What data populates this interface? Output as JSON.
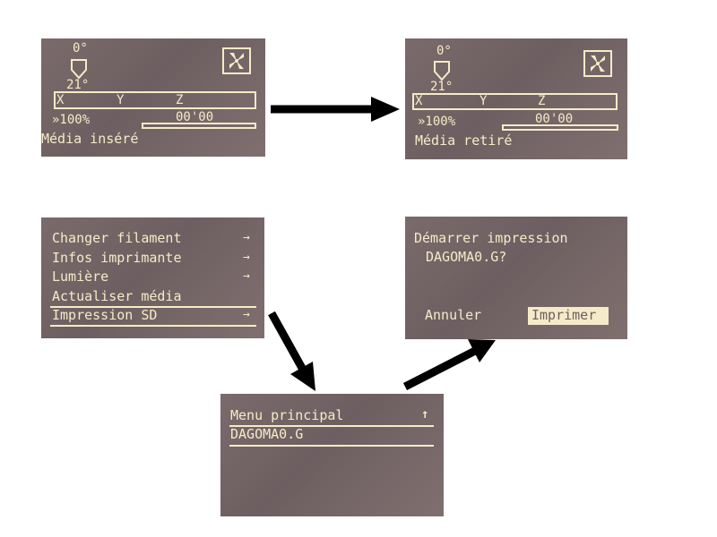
{
  "screen_inserted": {
    "bed_temp": "0°",
    "nozzle_temp": "21°",
    "axis_x": "X",
    "axis_y": "Y",
    "axis_z": "Z",
    "feedrate": "»100%",
    "time": "00'00",
    "status": "Média inséré"
  },
  "screen_removed": {
    "bed_temp": "0°",
    "nozzle_temp": "21°",
    "axis_x": "X",
    "axis_y": "Y",
    "axis_z": "Z",
    "feedrate": "»100%",
    "time": "00'00",
    "status": "Média retiré"
  },
  "main_menu": {
    "items": [
      {
        "label": "Changer filament",
        "arrow": "→"
      },
      {
        "label": "Infos imprimante",
        "arrow": "→"
      },
      {
        "label": "Lumière",
        "arrow": "→"
      },
      {
        "label": "Actualiser média",
        "arrow": ""
      },
      {
        "label": "Impression SD",
        "arrow": "→"
      }
    ]
  },
  "sd_menu": {
    "back_label": "Menu principal",
    "back_icon": "↑",
    "file": "DAGOMA0.G"
  },
  "confirm_dialog": {
    "line1": "Démarrer impression",
    "line2": "DAGOMA0.G?",
    "cancel": "Annuler",
    "confirm": "Imprimer"
  },
  "colors": {
    "lcd_background": "#6d5f61",
    "lcd_text": "#f6ebc8",
    "arrow": "#000000"
  }
}
